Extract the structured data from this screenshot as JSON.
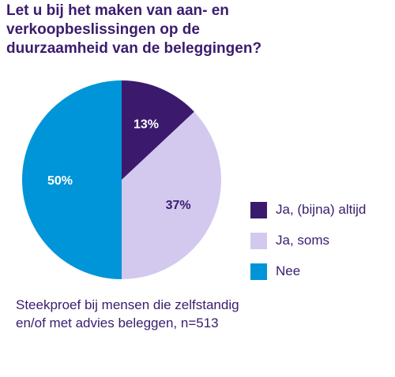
{
  "title_lines": [
    "Let u bij het maken van aan- en",
    "verkoopbeslissingen op de",
    "duurzaamheid van de beleggingen?"
  ],
  "chart_data": {
    "type": "pie",
    "title": "Let u bij het maken van aan- en verkoopbeslissingen op de duurzaamheid van de beleggingen?",
    "categories": [
      "Ja, (bijna) altijd",
      "Ja, soms",
      "Nee"
    ],
    "values": [
      13,
      37,
      50
    ],
    "data_labels": [
      "13%",
      "37%",
      "50%"
    ],
    "colors": [
      "#3b1a6e",
      "#d3c9ef",
      "#0094d8"
    ],
    "label_colors": [
      "#ffffff",
      "#3a1c6e",
      "#ffffff"
    ],
    "legend_position": "right"
  },
  "footnote_lines": [
    "Steekproef bij mensen die zelfstandig",
    "en/of met advies beleggen, n=513"
  ]
}
